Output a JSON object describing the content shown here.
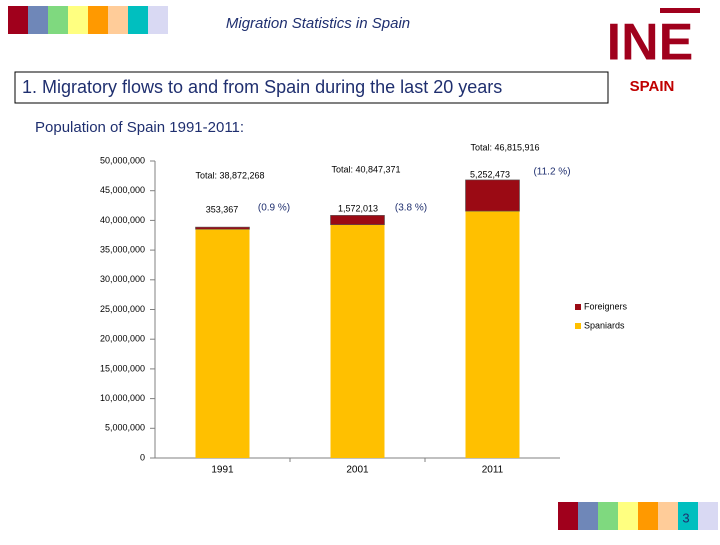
{
  "header": {
    "title": "Migration Statistics in Spain",
    "logo": "INE",
    "country": "SPAIN",
    "heading": "1. Migratory flows to and from Spain during the last 20 years",
    "subheading": "Population of Spain 1991-2011:"
  },
  "chart_data": {
    "type": "bar",
    "stacked": true,
    "categories": [
      "1991",
      "2001",
      "2011"
    ],
    "series": [
      {
        "name": "Spaniards",
        "color": "#ffc000",
        "values": [
          38518901,
          39275358,
          41563443
        ]
      },
      {
        "name": "Foreigners",
        "color": "#9b0a14",
        "values": [
          353367,
          1572013,
          5252473
        ],
        "value_labels": [
          "353,367",
          "1,572,013",
          "5,252,473"
        ]
      }
    ],
    "totals": [
      "Total: 38,872,268",
      "Total: 40,847,371",
      "Total: 46,815,916"
    ],
    "shares": [
      "(0.9 %)",
      "(3.8 %)",
      "(11.2 %)"
    ],
    "ylim": [
      0,
      50000000
    ],
    "yticks": [
      0,
      {
        "value": 5000000,
        "label": "5,000,000"
      },
      {
        "value": 10000000,
        "label": "10,000,000"
      },
      {
        "value": 15000000,
        "label": "15,000,000"
      },
      {
        "value": 20000000,
        "label": "20,000,000"
      },
      {
        "value": 25000000,
        "label": "25,000,000"
      },
      {
        "value": 30000000,
        "label": "30,000,000"
      },
      {
        "value": 35000000,
        "label": "35,000,000"
      },
      {
        "value": 40000000,
        "label": "40,000,000"
      },
      {
        "value": 45000000,
        "label": "45,000,000"
      },
      {
        "value": 50000000,
        "label": "50,000,000"
      }
    ],
    "legend": "right"
  },
  "footer": {
    "page": "3"
  }
}
